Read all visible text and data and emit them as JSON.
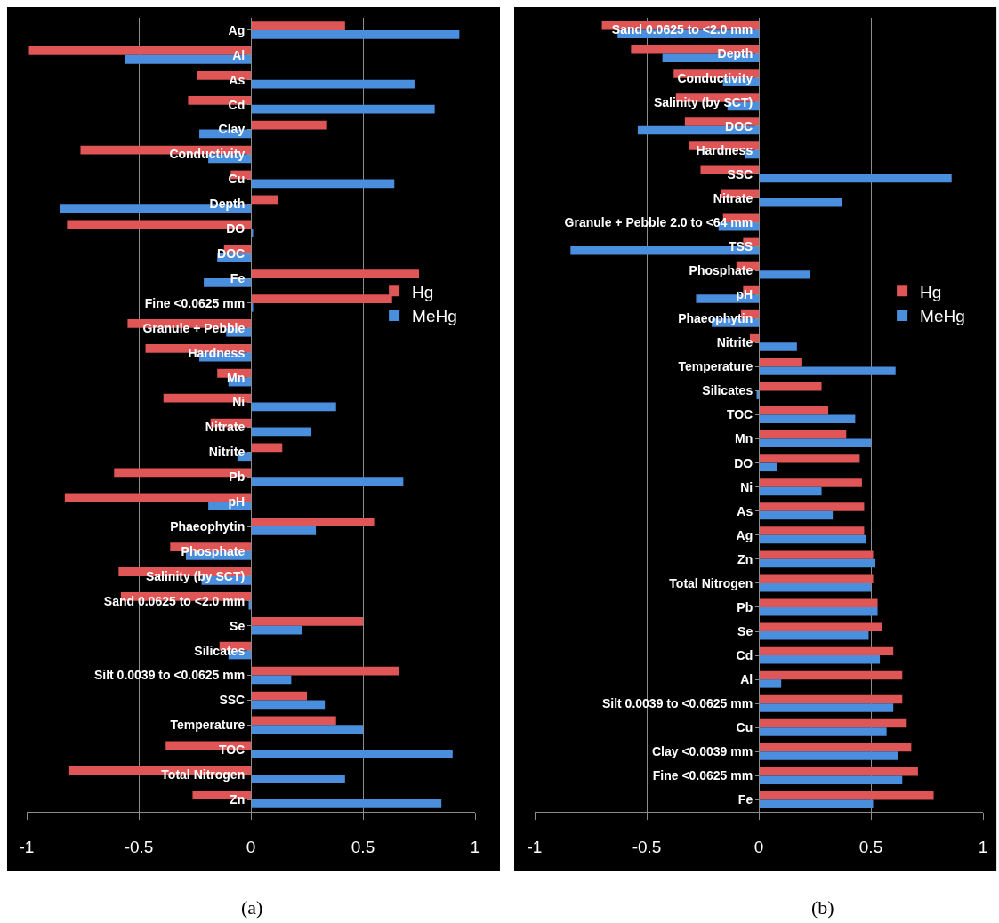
{
  "chart_data": [
    {
      "type": "bar",
      "orientation": "horizontal",
      "categories": [
        "Ag",
        "Al",
        "As",
        "Cd",
        "Clay",
        "Conductivity",
        "Cu",
        "Depth",
        "DO",
        "DOC",
        "Fe",
        "Fine <0.0625 mm",
        "Granule + Pebble",
        "Hardness",
        "Mn",
        "Ni",
        "Nitrate",
        "Nitrite",
        "Pb",
        "pH",
        "Phaeophytin",
        "Phosphate",
        "Salinity (by SCT)",
        "Sand 0.0625 to <2.0 mm",
        "Se",
        "Silicates",
        "Silt 0.0039 to <0.0625 mm",
        "SSC",
        "Temperature",
        "TOC",
        "Total Nitrogen",
        "Zn"
      ],
      "series": [
        {
          "name": "Hg",
          "color": "#e05555",
          "values": [
            0.42,
            -0.99,
            -0.24,
            -0.28,
            0.34,
            -0.76,
            -0.09,
            0.12,
            -0.82,
            -0.12,
            0.75,
            0.63,
            -0.55,
            -0.47,
            -0.15,
            -0.39,
            -0.18,
            0.14,
            -0.61,
            -0.83,
            0.55,
            -0.36,
            -0.59,
            -0.58,
            0.5,
            -0.14,
            0.66,
            0.25,
            0.38,
            -0.38,
            -0.81,
            -0.26
          ]
        },
        {
          "name": "MeHg",
          "color": "#4a8ede",
          "values": [
            0.93,
            -0.56,
            0.73,
            0.82,
            -0.23,
            -0.19,
            0.64,
            -0.85,
            0.01,
            -0.15,
            -0.21,
            0.01,
            -0.11,
            -0.23,
            -0.1,
            0.38,
            0.27,
            -0.06,
            0.68,
            -0.19,
            0.29,
            -0.29,
            -0.22,
            -0.01,
            0.23,
            -0.1,
            0.18,
            0.33,
            0.5,
            0.9,
            0.42,
            0.85
          ]
        }
      ],
      "xlim": [
        -1,
        1
      ],
      "xticks": [
        -1,
        -0.5,
        0,
        0.5,
        1
      ],
      "grid": "x",
      "legend": "right",
      "annotations": [
        "(a)"
      ]
    },
    {
      "type": "bar",
      "orientation": "horizontal",
      "categories": [
        "Sand 0.0625 to <2.0 mm",
        "Depth",
        "Conductivity",
        "Salinity (by SCT)",
        "DOC",
        "Hardness",
        "SSC",
        "Nitrate",
        "Granule + Pebble 2.0 to <64 mm",
        "TSS",
        "Phosphate",
        "pH",
        "Phaeophytin",
        "Nitrite",
        "Temperature",
        "Silicates",
        "TOC",
        "Mn",
        "DO",
        "Ni",
        "As",
        "Ag",
        "Zn",
        "Total Nitrogen",
        "Pb",
        "Se",
        "Cd",
        "Al",
        "Silt 0.0039 to <0.0625 mm",
        "Cu",
        "Clay <0.0039 mm",
        "Fine <0.0625 mm",
        "Fe"
      ],
      "series": [
        {
          "name": "Hg",
          "color": "#e05555",
          "values": [
            -0.7,
            -0.57,
            -0.38,
            -0.37,
            -0.33,
            -0.31,
            -0.26,
            -0.17,
            -0.16,
            -0.07,
            -0.1,
            -0.07,
            -0.08,
            -0.04,
            0.19,
            0.28,
            0.31,
            0.39,
            0.45,
            0.46,
            0.47,
            0.47,
            0.51,
            0.51,
            0.53,
            0.55,
            0.6,
            0.64,
            0.64,
            0.66,
            0.68,
            0.71,
            0.78
          ]
        },
        {
          "name": "MeHg",
          "color": "#4a8ede",
          "values": [
            -0.63,
            -0.43,
            -0.16,
            -0.14,
            -0.54,
            -0.06,
            0.86,
            0.37,
            -0.18,
            -0.84,
            0.23,
            -0.28,
            -0.21,
            0.17,
            0.61,
            -0.01,
            0.43,
            0.5,
            0.08,
            0.28,
            0.33,
            0.48,
            0.52,
            0.5,
            0.53,
            0.49,
            0.54,
            0.1,
            0.6,
            0.57,
            0.62,
            0.64,
            0.51
          ]
        }
      ],
      "xlim": [
        -1,
        1
      ],
      "xticks": [
        -1,
        -0.5,
        0,
        0.5,
        1
      ],
      "grid": "x",
      "legend": "right",
      "annotations": [
        "(b)"
      ]
    }
  ]
}
